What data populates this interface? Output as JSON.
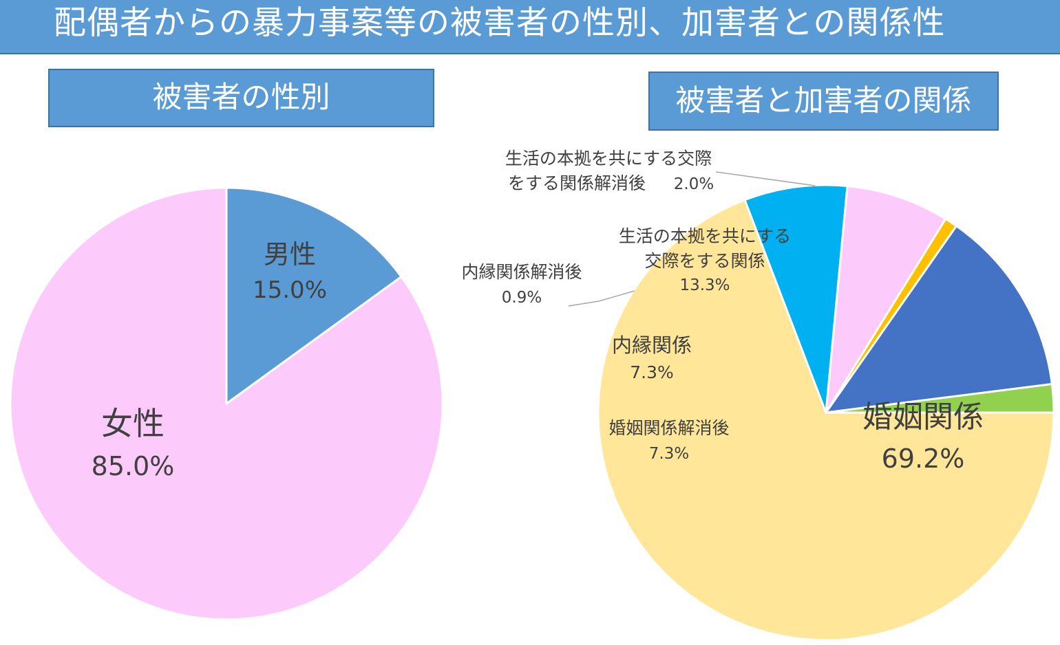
{
  "header": {
    "title": "配偶者からの暴力事案等の被害者の性別、加害者との関係性"
  },
  "colors": {
    "banner": "#5b9bd5",
    "male": "#5b9bd5",
    "female": "#fdcbfb",
    "marriage": "#ffe699",
    "after_divorce": "#00b0f0",
    "relative": "#fdcbfb",
    "after_relative": "#ffc000",
    "cohabit": "#4472c4",
    "after_cohabit": "#92d050"
  },
  "chart_data": [
    {
      "type": "pie",
      "title": "被害者の性別",
      "slices": [
        {
          "label": "男性",
          "value": 15.0,
          "value_label": "15.0%",
          "color": "#5b9bd5"
        },
        {
          "label": "女性",
          "value": 85.0,
          "value_label": "85.0%",
          "color": "#fdcbfb"
        }
      ]
    },
    {
      "type": "pie",
      "title": "被害者と加害者の関係",
      "slices": [
        {
          "label": "婚姻関係",
          "value": 69.2,
          "value_label": "69.2%",
          "color": "#ffe699"
        },
        {
          "label": "婚姻関係解消後",
          "value": 7.3,
          "value_label": "7.3%",
          "color": "#00b0f0"
        },
        {
          "label": "内縁関係",
          "value": 7.3,
          "value_label": "7.3%",
          "color": "#fdcbfb"
        },
        {
          "label": "内縁関係解消後",
          "value": 0.9,
          "value_label": "0.9%",
          "color": "#ffc000"
        },
        {
          "label": "生活の本拠を共にする交際をする関係",
          "label_lines": [
            "生活の本拠を共にする",
            "交際をする関係"
          ],
          "value": 13.3,
          "value_label": "13.3%",
          "color": "#4472c4"
        },
        {
          "label": "生活の本拠を共にする交際をする関係解消後",
          "label_lines": [
            "生活の本拠を共にする交際",
            "をする関係解消後"
          ],
          "value": 2.0,
          "value_label": "2.0%",
          "color": "#92d050"
        }
      ]
    }
  ]
}
